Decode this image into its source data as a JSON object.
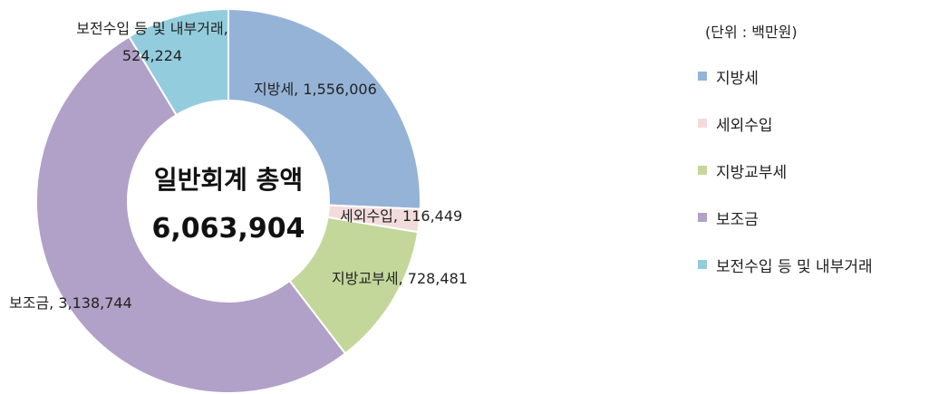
{
  "chart_data": {
    "type": "pie",
    "variant": "donut",
    "unit_note": "(단위 : 백만원)",
    "center_title": "일반회계 총액",
    "center_value": "6,063,904",
    "total": 6063904,
    "categories": [
      "지방세",
      "세외수입",
      "지방교부세",
      "보조금",
      "보전수입 등 및 내부거래"
    ],
    "values": [
      1556006,
      116449,
      728481,
      3138744,
      524224
    ],
    "value_labels": [
      "1,556,006",
      "116,449",
      "728,481",
      "3,138,744",
      "524,224"
    ],
    "slice_labels": [
      [
        "지방세, 1,556,006"
      ],
      [
        "세외수입, 116,449"
      ],
      [
        "지방교부세, 728,481"
      ],
      [
        "보조금, 3,138,744"
      ],
      [
        "보전수입 등 및 내부거래,",
        "524,224"
      ]
    ],
    "colors": [
      "#95b3d7",
      "#f2dcdb",
      "#c4d79b",
      "#b1a0c7",
      "#93cddd"
    ],
    "start_angle_deg": 0,
    "legend_position": "right"
  }
}
